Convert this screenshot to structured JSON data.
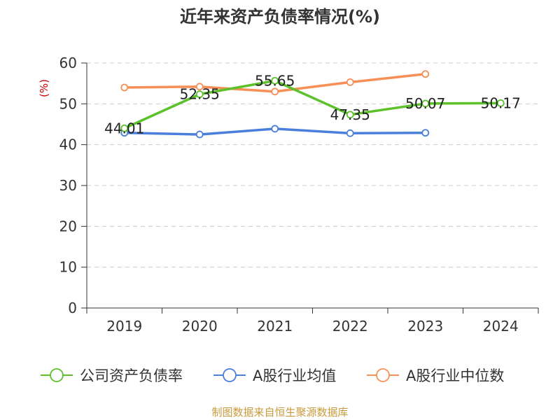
{
  "chart_data": {
    "type": "line",
    "title": "近年来资产负债率情况(%)",
    "ylabel": "(%)",
    "xlabel": "",
    "categories": [
      "2019",
      "2020",
      "2021",
      "2022",
      "2023",
      "2024"
    ],
    "ylim": [
      0,
      60
    ],
    "yticks": [
      "0",
      "10",
      "20",
      "30",
      "40",
      "50",
      "60"
    ],
    "grid": true,
    "legend_position": "bottom",
    "series": [
      {
        "name": "公司资产负债率",
        "color": "#5cc12b",
        "values": [
          44.01,
          52.35,
          55.65,
          47.35,
          50.07,
          50.17
        ],
        "labels": [
          "44.01",
          "52.35",
          "55.65",
          "47.35",
          "50.07",
          "50.17"
        ]
      },
      {
        "name": "A股行业均值",
        "color": "#4a7fdb",
        "values": [
          42.9,
          42.5,
          43.9,
          42.8,
          42.9,
          null
        ]
      },
      {
        "name": "A股行业中位数",
        "color": "#f78f57",
        "values": [
          54.0,
          54.2,
          53.0,
          55.3,
          57.3,
          null
        ]
      }
    ]
  },
  "colors": {
    "unit": "#cc0000",
    "source": "#c89a3c",
    "grid": "#cccccc",
    "axis": "#333333"
  },
  "footer": {
    "source": "制图数据来自恒生聚源数据库"
  }
}
